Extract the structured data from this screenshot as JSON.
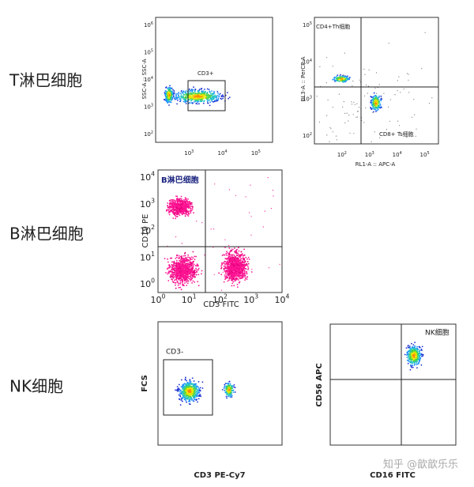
{
  "rows": [
    {
      "label": "T淋巴细胞"
    },
    {
      "label": "B淋巴细胞"
    },
    {
      "label": "NK细胞"
    }
  ],
  "tick_base": "10",
  "panels": [
    {
      "y_label": "SSC-A :: SSC-A",
      "x_ticks": [
        "3",
        "4",
        "5"
      ],
      "y_ticks": [
        "6",
        "5",
        "4",
        "3",
        "2"
      ],
      "gate_labels": [
        "CD3+"
      ]
    },
    {
      "y_label": "BL3-A :: PerCP-A",
      "x_label": "RL1-A :: APC-A",
      "x_ticks": [
        "2",
        "3",
        "4",
        "5"
      ],
      "y_ticks": [
        "5",
        "4",
        "3",
        "2"
      ],
      "gate_labels": [
        "CD4+Th细胞",
        "CD8+ Ts细胞"
      ]
    },
    {
      "y_label": "CD19 PE",
      "x_label": "CD3 FITC",
      "x_ticks": [
        "0",
        "1",
        "2",
        "3",
        "4"
      ],
      "y_ticks": [
        "4",
        "3",
        "2",
        "1",
        "0"
      ],
      "gate_labels": [
        "B淋巴细胞"
      ]
    },
    {
      "y_label": "FCS",
      "x_label": "CD3 PE-Cy7",
      "gate_labels": [
        "CD3-"
      ]
    },
    {
      "y_label": "CD56 APC",
      "x_label": "CD16 FITC",
      "gate_labels": [
        "NK细胞"
      ]
    }
  ],
  "watermark": "知乎 @歆歆乐乐"
}
